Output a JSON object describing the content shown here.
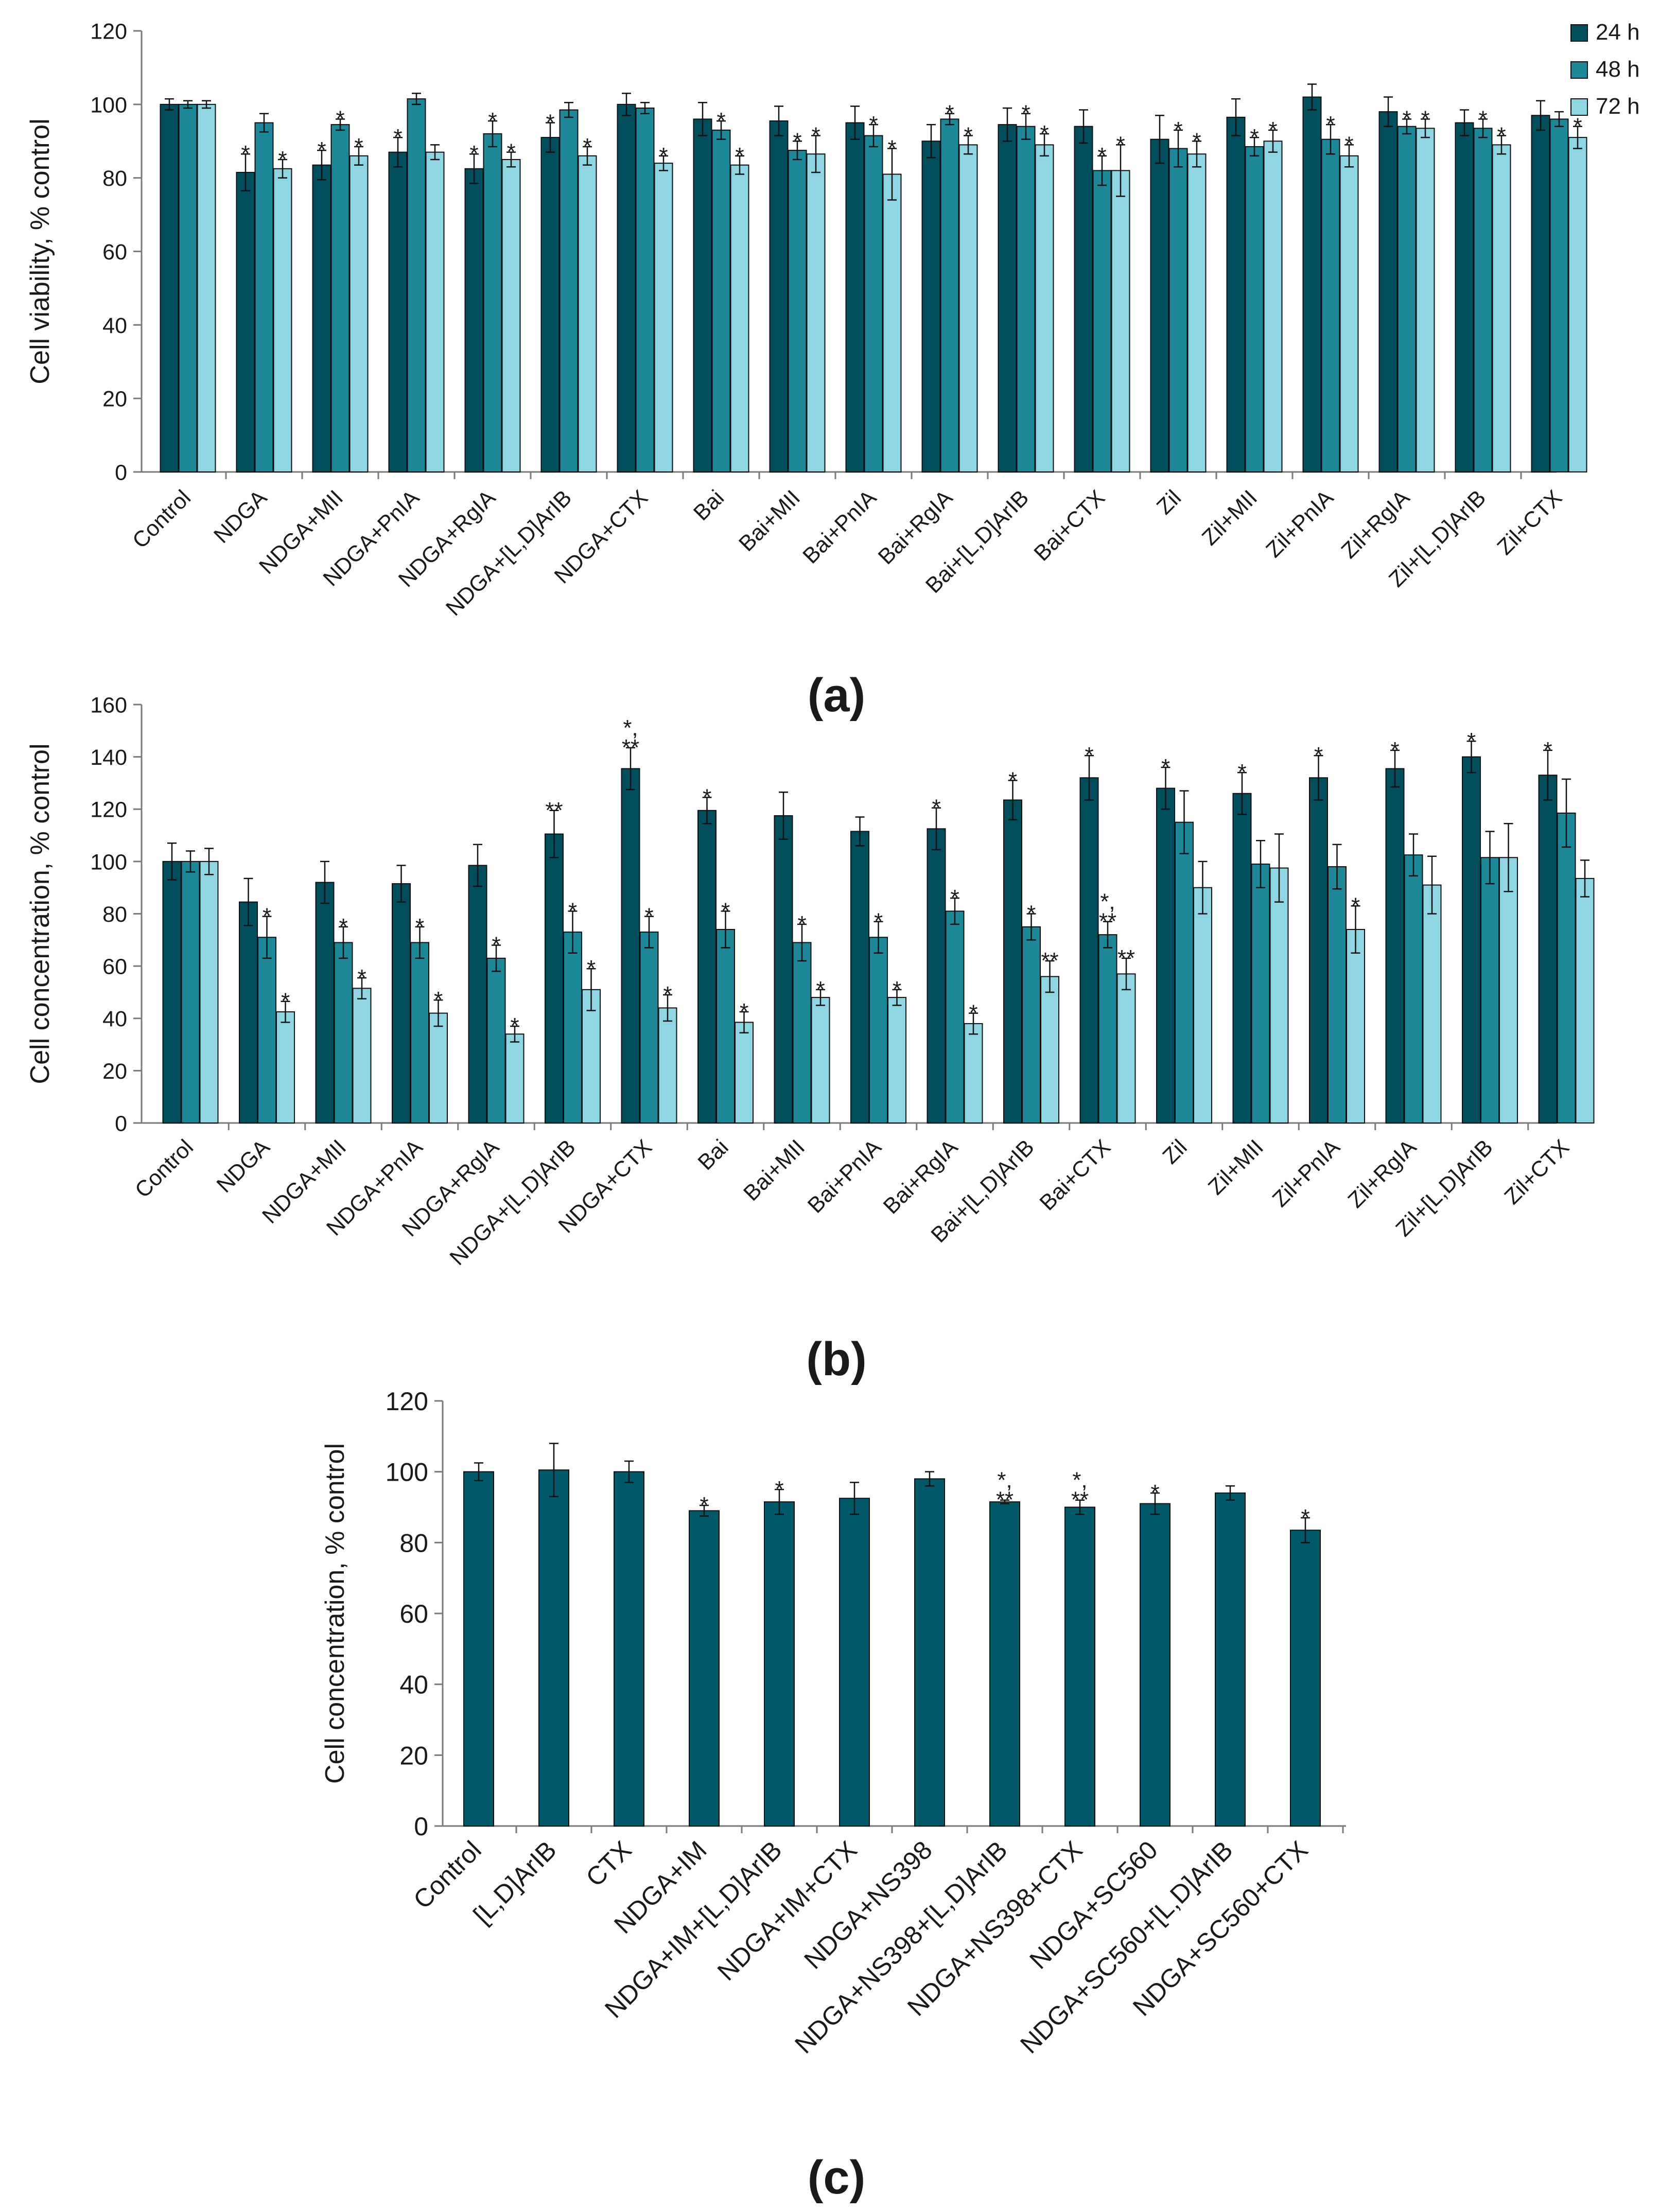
{
  "legend": {
    "position": "top-right",
    "entries": [
      "24 h",
      "48 h",
      "72 h"
    ]
  },
  "colors": {
    "24 h": "#034e5c",
    "48 h": "#1d8697",
    "72 h": "#8fd5e2",
    "single": "#005869",
    "axis": "#7a7a7a",
    "text": "#1a1a1a"
  },
  "chart_data": [
    {
      "panel_label": "(a)",
      "type": "bar",
      "ylabel": "Cell viability, % control",
      "ylim": [
        0,
        120
      ],
      "yticks": [
        0,
        20,
        40,
        60,
        80,
        100,
        120
      ],
      "categories": [
        "Control",
        "NDGA",
        "NDGA+MII",
        "NDGA+PnIA",
        "NDGA+RgIA",
        "NDGA+[L,D]ArIB",
        "NDGA+CTX",
        "Bai",
        "Bai+MII",
        "Bai+PnIA",
        "Bai+RgIA",
        "Bai+[L,D]ArIB",
        "Bai+CTX",
        "Zil",
        "Zil+MII",
        "Zil+PnIA",
        "Zil+RgIA",
        "Zil+[L,D]ArIB",
        "Zil+CTX"
      ],
      "series": [
        {
          "name": "24 h",
          "values": [
            100,
            81.5,
            83.5,
            87,
            82.5,
            91,
            100,
            96,
            95.5,
            95,
            90,
            94.5,
            94,
            90.5,
            96.5,
            102,
            98,
            95,
            97
          ],
          "errors": [
            1.5,
            5,
            4,
            4,
            4,
            4,
            3,
            4.5,
            4,
            4.5,
            4.5,
            4.5,
            4.5,
            6.5,
            5,
            3.5,
            4,
            3.5,
            4
          ],
          "sig": [
            "",
            "*",
            "*",
            "*",
            "*",
            "*",
            "",
            "",
            "",
            "",
            "",
            "",
            "",
            "",
            "",
            "",
            "",
            "",
            ""
          ]
        },
        {
          "name": "48 h",
          "values": [
            100,
            95,
            94.5,
            101.5,
            92,
            98.5,
            99,
            93,
            87.5,
            91.5,
            96,
            94,
            82,
            88,
            88.5,
            90.5,
            94,
            93.5,
            96
          ],
          "errors": [
            1,
            2.5,
            1.5,
            1.5,
            3.5,
            2,
            1.5,
            2.5,
            2.5,
            3,
            1.5,
            3.5,
            4,
            5,
            2.5,
            4,
            2,
            2.5,
            2
          ],
          "sig": [
            "",
            "",
            "*",
            "",
            "*",
            "",
            "",
            "*",
            "*",
            "*",
            "*",
            "*",
            "*",
            "*",
            "*",
            "*",
            "*",
            "*",
            ""
          ]
        },
        {
          "name": "72 h",
          "values": [
            100,
            82.5,
            86,
            87,
            85,
            86,
            84,
            83.5,
            86.5,
            81,
            89,
            89,
            82,
            86.5,
            90,
            86,
            93.5,
            89,
            91
          ],
          "errors": [
            1,
            2.5,
            2.5,
            2,
            2,
            2.5,
            2,
            2.5,
            5,
            7,
            2.5,
            3,
            7,
            3.5,
            3,
            3,
            2.5,
            2.5,
            3
          ],
          "sig": [
            "",
            "*",
            "*",
            "",
            "*",
            "*",
            "*",
            "*",
            "*",
            "*",
            "*",
            "*",
            "*",
            "*",
            "*",
            "*",
            "*",
            "*",
            "*"
          ]
        }
      ]
    },
    {
      "panel_label": "(b)",
      "type": "bar",
      "ylabel": "Cell concentration,  % control",
      "ylim": [
        0,
        160
      ],
      "yticks": [
        0,
        20,
        40,
        60,
        80,
        100,
        120,
        140,
        160
      ],
      "categories": [
        "Control",
        "NDGA",
        "NDGA+MII",
        "NDGA+PnIA",
        "NDGA+RgIA",
        "NDGA+[L,D]ArIB",
        "NDGA+CTX",
        "Bai",
        "Bai+MII",
        "Bai+PnIA",
        "Bai+RgIA",
        "Bai+[L,D]ArIB",
        "Bai+CTX",
        "Zil",
        "Zil+MII",
        "Zil+PnIA",
        "Zil+RgIA",
        "Zil+[L,D]ArIB",
        "Zil+CTX"
      ],
      "series": [
        {
          "name": "24 h",
          "values": [
            100,
            84.5,
            92,
            91.5,
            98.5,
            110.5,
            135.5,
            119.5,
            117.5,
            111.5,
            112.5,
            123.5,
            132,
            128,
            126,
            132,
            135.5,
            140,
            133
          ],
          "errors": [
            7,
            9,
            8,
            7,
            8,
            9,
            8,
            5,
            9,
            5.5,
            8,
            7.5,
            8.5,
            8,
            8,
            8.5,
            7,
            6,
            9.5
          ],
          "sig": [
            "",
            "",
            "",
            "",
            "",
            "**",
            "*,\n**",
            "*",
            "",
            "",
            "*",
            "*",
            "*",
            "*",
            "*",
            "*",
            "*",
            "*",
            "*"
          ]
        },
        {
          "name": "48 h",
          "values": [
            100,
            71,
            69,
            69,
            63,
            73,
            73,
            74,
            69,
            71,
            81,
            75,
            72,
            115,
            99,
            98,
            102.5,
            101.5,
            118.5
          ],
          "errors": [
            4,
            8,
            6,
            6,
            5,
            8,
            6,
            7,
            7,
            6,
            5,
            5,
            5,
            12,
            9,
            8.5,
            8,
            10,
            13
          ],
          "sig": [
            "",
            "*",
            "*",
            "*",
            "*",
            "*",
            "*",
            "*",
            "*",
            "*",
            "*",
            "*",
            "*,\n**",
            "",
            "",
            "",
            "",
            "",
            ""
          ]
        },
        {
          "name": "72 h",
          "values": [
            100,
            42.5,
            51.5,
            42,
            34,
            51,
            44,
            38.5,
            48,
            48,
            38,
            56,
            57,
            90,
            97.5,
            74,
            91,
            101.5,
            93.5
          ],
          "errors": [
            5,
            4,
            4,
            5,
            3,
            8,
            5,
            4,
            3,
            3,
            4,
            6,
            6,
            10,
            13,
            9,
            11,
            13,
            7
          ],
          "sig": [
            "",
            "*",
            "*",
            "*",
            "*",
            "*",
            "*",
            "*",
            "*",
            "*",
            "*",
            "**",
            "**",
            "",
            "",
            "*",
            "",
            "",
            ""
          ]
        }
      ]
    },
    {
      "panel_label": "(c)",
      "type": "bar",
      "ylabel": "Cell concentration, % control",
      "ylim": [
        0,
        120
      ],
      "yticks": [
        0,
        20,
        40,
        60,
        80,
        100,
        120
      ],
      "categories": [
        "Control",
        "[L,D]ArIB",
        "CTX",
        "NDGA+IM",
        "NDGA+IM+[L,D]ArIB",
        "NDGA+IM+CTX",
        "NDGA+NS398",
        "NDGA+NS398+[L,D]ArIB",
        "NDGA+NS398+CTX",
        "NDGA+SC560",
        "NDGA+SC560+[L,D]ArIB",
        "NDGA+SC560+CTX"
      ],
      "series": [
        {
          "name": "",
          "values": [
            100,
            100.5,
            100,
            89,
            91.5,
            92.5,
            98,
            91.5,
            90,
            91,
            94,
            83.5
          ],
          "errors": [
            2.5,
            7.5,
            3,
            1.5,
            3.5,
            4.5,
            2,
            0.5,
            2,
            3,
            2,
            3.5
          ],
          "sig": [
            "",
            "",
            "",
            "*",
            "*",
            "",
            "",
            "*,\n**",
            "*,\n**",
            "*",
            "",
            "*"
          ]
        }
      ]
    }
  ]
}
